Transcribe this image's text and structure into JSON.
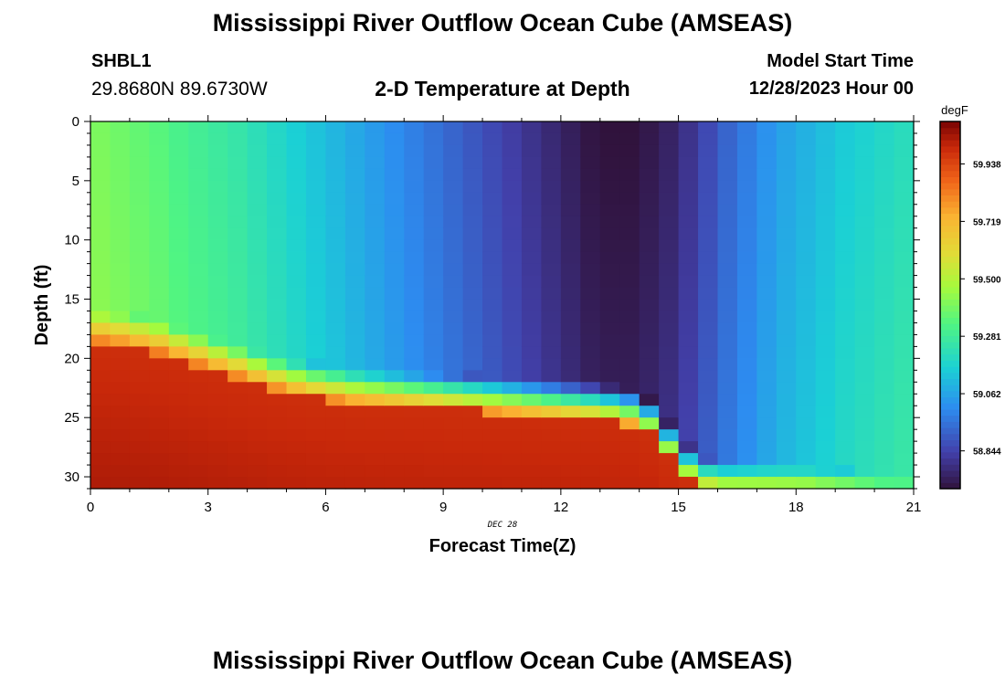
{
  "header": {
    "title": "Mississippi River Outflow Ocean Cube (AMSEAS)",
    "station": "SHBL1",
    "coords": "29.8680N  89.6730W",
    "subtitle": "2-D Temperature at Depth",
    "model_start_label": "Model Start Time",
    "model_start_value": "12/28/2023 Hour 00"
  },
  "footer": {
    "title": "Mississippi River Outflow Ocean Cube (AMSEAS)"
  },
  "chart_data": {
    "type": "heatmap",
    "xlabel": "Forecast Time(Z)",
    "ylabel": "Depth (ft)",
    "x_date_label": "DEC 28",
    "xlim": [
      0,
      21
    ],
    "ylim": [
      31,
      0
    ],
    "x_ticks": [
      0,
      3,
      6,
      9,
      12,
      15,
      18,
      21
    ],
    "y_ticks": [
      0,
      5,
      10,
      15,
      20,
      25,
      30
    ],
    "colorbar": {
      "units": "degF",
      "range": [
        58.7,
        60.1
      ],
      "tick_values": [
        59.938,
        59.719,
        59.5,
        59.281,
        59.062,
        58.844
      ],
      "tick_labels": [
        "59.938",
        "59.719",
        "59.500",
        "59.281",
        "59.062",
        "58.844"
      ]
    },
    "x_step": 0.5,
    "y_step": 1,
    "surface_profile": [
      59.4,
      59.38,
      59.36,
      59.34,
      59.31,
      59.29,
      59.27,
      59.25,
      59.22,
      59.19,
      59.16,
      59.13,
      59.1,
      59.07,
      59.04,
      59.01,
      58.98,
      58.95,
      58.92,
      58.89,
      58.86,
      58.83,
      58.8,
      58.77,
      58.74,
      58.71,
      58.7,
      58.7,
      58.72,
      58.75,
      58.8,
      58.86,
      58.92,
      58.97,
      59.02,
      59.06,
      59.09,
      59.12,
      59.15,
      59.17,
      59.19,
      59.21
    ],
    "bottom_layer_temp": 59.98,
    "thermocline_depth": [
      17.0,
      17.2,
      17.5,
      17.8,
      18.3,
      18.8,
      19.3,
      19.8,
      20.3,
      20.8,
      21.2,
      21.5,
      21.7,
      21.9,
      22.0,
      22.1,
      22.2,
      22.3,
      22.4,
      22.5,
      22.6,
      22.7,
      22.8,
      22.9,
      23.0,
      23.1,
      23.3,
      23.6,
      24.5,
      26.5,
      28.5,
      29.4,
      29.7,
      29.8,
      29.9,
      30.0,
      30.1,
      30.3,
      30.5,
      30.7,
      30.9,
      31.0
    ]
  }
}
